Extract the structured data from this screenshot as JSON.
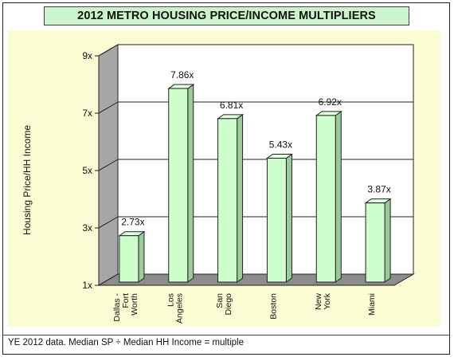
{
  "chart": {
    "title": "2012 METRO HOUSING PRICE/INCOME MULTIPLIERS",
    "footnote": "YE 2012 data.  Median SP ÷ Median HH Income = multiple"
  },
  "chart_data": {
    "type": "bar",
    "title": "2012 METRO HOUSING PRICE/INCOME MULTIPLIERS",
    "xlabel": "",
    "ylabel": "Housing Price/HH Income",
    "categories": [
      [
        "Dallas -",
        "Fort",
        "Worth"
      ],
      [
        "Los",
        "Angeles"
      ],
      [
        "San",
        "Diego"
      ],
      [
        "Boston"
      ],
      [
        "New",
        "York"
      ],
      [
        "Miami"
      ]
    ],
    "values": [
      2.73,
      7.86,
      6.81,
      5.43,
      6.92,
      3.87
    ],
    "data_labels": [
      "2.73x",
      "7.86x",
      "6.81x",
      "5.43x",
      "6.92x",
      "3.87x"
    ],
    "ylim": [
      1,
      9
    ],
    "yticks": [
      1,
      3,
      5,
      7,
      9
    ],
    "ytick_labels": [
      "1x",
      "3x",
      "5x",
      "7x",
      "9x"
    ],
    "grid": true,
    "colors": {
      "bar_front": "#ccffcc",
      "bar_side": "#9acb9a",
      "bar_top": "#e2ffe2",
      "wall": "#ffffff",
      "side_wall": "#a6a6a6",
      "floor": "#8c8c8c",
      "plot_area": "#fbfbd4",
      "title_bg": "#ccf4cc"
    }
  }
}
